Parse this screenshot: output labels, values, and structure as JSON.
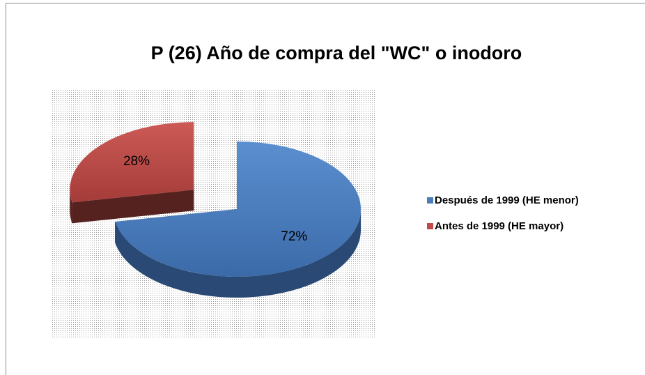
{
  "chart_data": {
    "type": "pie",
    "title": "P (26) Año de compra del \"WC\" o inodoro",
    "categories": [
      "Después de 1999 (HE menor)",
      "Antes de 1999 (HE mayor)"
    ],
    "values": [
      72,
      28
    ],
    "value_labels": [
      "72%",
      "28%"
    ],
    "colors": [
      "#4a7ebb",
      "#be4b48"
    ],
    "explode": [
      0,
      0.45
    ],
    "legend": "right"
  }
}
